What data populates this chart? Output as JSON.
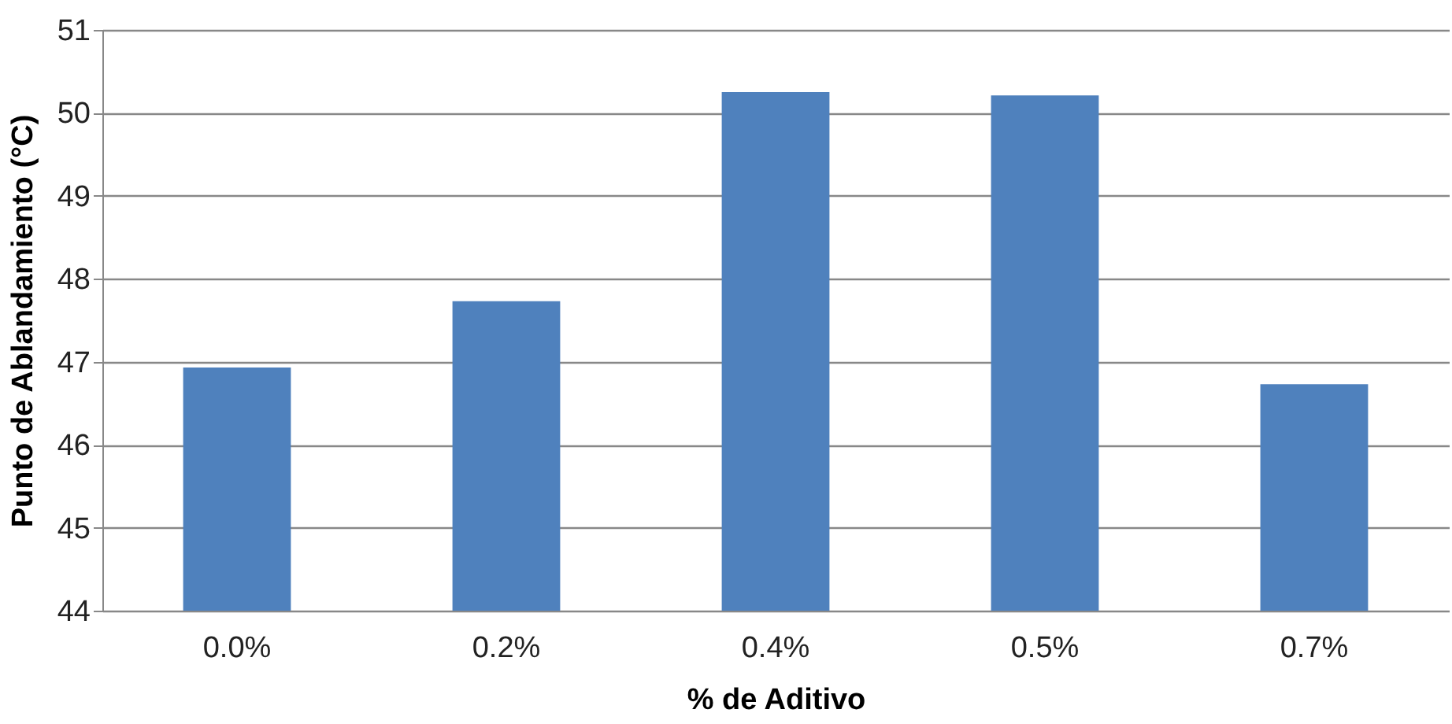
{
  "chart_data": {
    "type": "bar",
    "xlabel": "% de Aditivo",
    "ylabel": "Punto de Ablandamiento (°C)",
    "categories": [
      "0.0%",
      "0.2%",
      "0.4%",
      "0.5%",
      "0.7%"
    ],
    "values": [
      46.93,
      47.73,
      50.25,
      50.21,
      46.73
    ],
    "color": "#4f81bd",
    "ylim": [
      44,
      51
    ],
    "yticks": [
      44,
      45,
      46,
      47,
      48,
      49,
      50,
      51
    ],
    "grid": "y"
  }
}
